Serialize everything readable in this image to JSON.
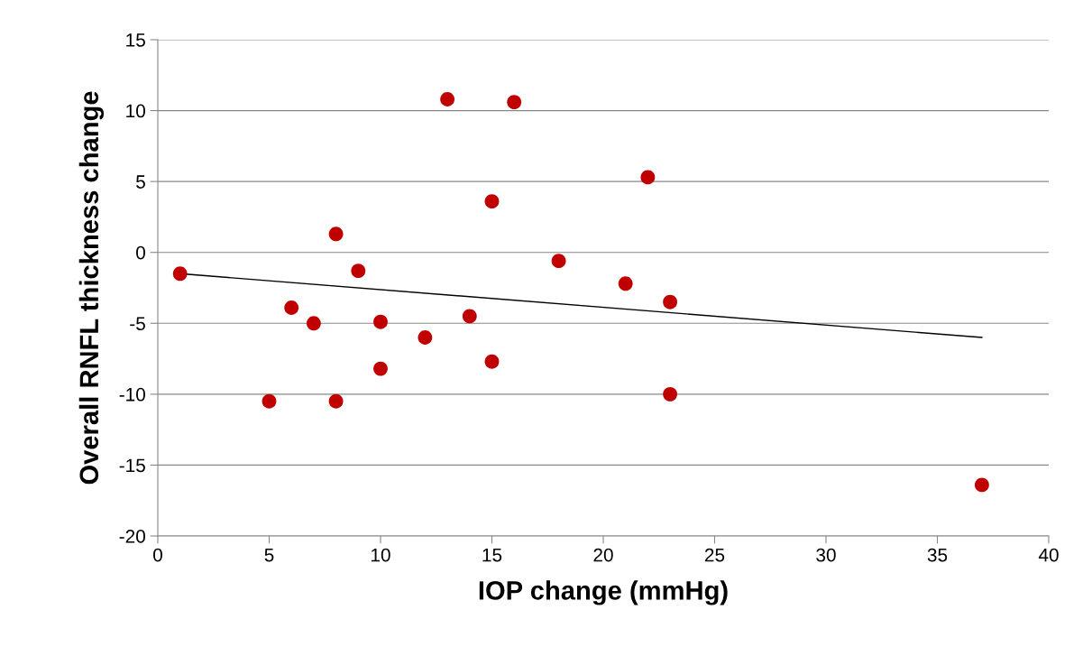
{
  "chart_data": {
    "type": "scatter",
    "xlabel": "IOP change (mmHg)",
    "ylabel": "Overall RNFL thickness change",
    "xlim": [
      0,
      40
    ],
    "xticks": [
      0,
      5,
      10,
      15,
      20,
      25,
      30,
      35,
      40
    ],
    "ylim": [
      -20,
      15
    ],
    "yticks": [
      -20,
      -15,
      -10,
      -5,
      0,
      5,
      10,
      15
    ],
    "grid": "y",
    "series": [
      {
        "marker": "circle",
        "color": "#c00000",
        "x": [
          1,
          5,
          6,
          7,
          8,
          8,
          9,
          10,
          10,
          12,
          13,
          14,
          15,
          15,
          16,
          18,
          21,
          22,
          23,
          23,
          37
        ],
        "values": [
          -1.5,
          -10.5,
          -3.9,
          -5.0,
          1.3,
          -10.5,
          -1.3,
          -4.9,
          -8.2,
          -6.0,
          10.8,
          -4.5,
          3.6,
          -7.7,
          10.6,
          -0.6,
          -2.2,
          5.3,
          -3.5,
          -10.0,
          -16.4
        ]
      },
      {
        "type": "line",
        "marker": "none",
        "color": "#000000",
        "x": [
          1,
          37
        ],
        "values": [
          -1.5,
          -6.0
        ]
      }
    ]
  }
}
